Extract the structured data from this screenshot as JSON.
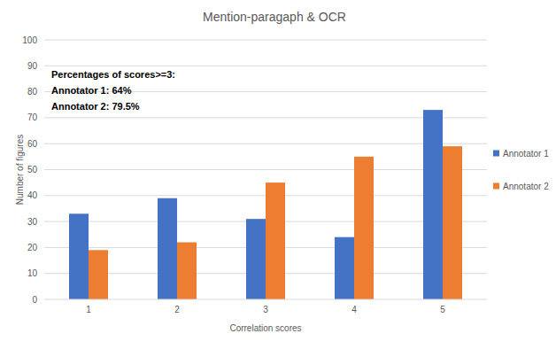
{
  "chart_data": {
    "type": "bar",
    "title": "Mention-paragaph & OCR",
    "x_label": "Correlation scores",
    "y_label": "Number of figures",
    "categories": [
      "1",
      "2",
      "3",
      "4",
      "5"
    ],
    "series": [
      {
        "name": "Annotator 1",
        "color": "#4472c4",
        "values": [
          33,
          39,
          31,
          24,
          73
        ]
      },
      {
        "name": "Annotator 2",
        "color": "#ed7d31",
        "values": [
          19,
          22,
          45,
          55,
          59
        ]
      }
    ],
    "ylim": [
      0,
      100
    ],
    "yticks": [
      0,
      10,
      20,
      30,
      40,
      50,
      60,
      70,
      80,
      90,
      100
    ],
    "grid": true,
    "legend": "right",
    "annotations": [
      "Percentages of scores>=3:",
      "Annotator 1: 64%",
      "Annotator 2: 79.5%"
    ]
  }
}
